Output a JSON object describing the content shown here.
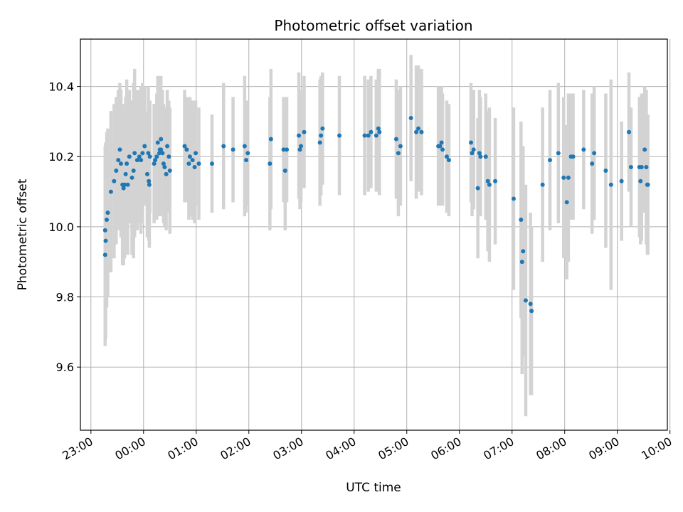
{
  "chart_data": {
    "type": "scatter",
    "title": "Photometric offset variation",
    "xlabel": "UTC time",
    "ylabel": "Photometric offset",
    "ylim": [
      9.42,
      10.535
    ],
    "xlim_hours": [
      -1.2,
      9.95
    ],
    "grid": true,
    "marker_color": "#1f77b4",
    "errorbar_color": "#d3d3d3",
    "x_ticks": [
      {
        "hour": -1,
        "label": "23:00"
      },
      {
        "hour": 0,
        "label": "00:00"
      },
      {
        "hour": 1,
        "label": "01:00"
      },
      {
        "hour": 2,
        "label": "02:00"
      },
      {
        "hour": 3,
        "label": "03:00"
      },
      {
        "hour": 4,
        "label": "04:00"
      },
      {
        "hour": 5,
        "label": "05:00"
      },
      {
        "hour": 6,
        "label": "06:00"
      },
      {
        "hour": 7,
        "label": "07:00"
      },
      {
        "hour": 8,
        "label": "08:00"
      },
      {
        "hour": 9,
        "label": "09:00"
      },
      {
        "hour": 10,
        "label": "10:00"
      }
    ],
    "y_ticks": [
      {
        "value": 9.6,
        "label": "9.6"
      },
      {
        "value": 9.8,
        "label": "9.8"
      },
      {
        "value": 10.0,
        "label": "10.0"
      },
      {
        "value": 10.2,
        "label": "10.2"
      },
      {
        "value": 10.4,
        "label": "10.4"
      }
    ],
    "series": [
      {
        "name": "offset",
        "points": [
          [
            -0.73,
            9.92,
            0.26
          ],
          [
            -0.73,
            9.99,
            0.24
          ],
          [
            -0.72,
            9.96,
            0.28
          ],
          [
            -0.7,
            10.02,
            0.25
          ],
          [
            -0.68,
            10.04,
            0.24
          ],
          [
            -0.62,
            10.1,
            0.23
          ],
          [
            -0.56,
            10.13,
            0.22
          ],
          [
            -0.52,
            10.16,
            0.21
          ],
          [
            -0.48,
            10.19,
            0.2
          ],
          [
            -0.45,
            10.22,
            0.19
          ],
          [
            -0.43,
            10.18,
            0.21
          ],
          [
            -0.4,
            10.12,
            0.23
          ],
          [
            -0.38,
            10.11,
            0.22
          ],
          [
            -0.36,
            10.12,
            0.21
          ],
          [
            -0.34,
            10.15,
            0.22
          ],
          [
            -0.32,
            10.18,
            0.24
          ],
          [
            -0.3,
            10.12,
            0.2
          ],
          [
            -0.27,
            10.2,
            0.19
          ],
          [
            -0.22,
            10.14,
            0.22
          ],
          [
            -0.19,
            10.16,
            0.25
          ],
          [
            -0.17,
            10.21,
            0.24
          ],
          [
            -0.12,
            10.19,
            0.2
          ],
          [
            -0.08,
            10.2,
            0.19
          ],
          [
            -0.05,
            10.19,
            0.21
          ],
          [
            -0.02,
            10.21,
            0.2
          ],
          [
            0.02,
            10.23,
            0.17
          ],
          [
            0.07,
            10.15,
            0.18
          ],
          [
            0.09,
            10.21,
            0.19
          ],
          [
            0.1,
            10.13,
            0.17
          ],
          [
            0.11,
            10.12,
            0.18
          ],
          [
            0.12,
            10.2,
            0.16
          ],
          [
            0.2,
            10.18,
            0.17
          ],
          [
            0.22,
            10.19,
            0.16
          ],
          [
            0.25,
            10.2,
            0.18
          ],
          [
            0.27,
            10.24,
            0.19
          ],
          [
            0.3,
            10.21,
            0.18
          ],
          [
            0.31,
            10.22,
            0.17
          ],
          [
            0.33,
            10.22,
            0.17
          ],
          [
            0.33,
            10.25,
            0.18
          ],
          [
            0.36,
            10.21,
            0.18
          ],
          [
            0.38,
            10.18,
            0.17
          ],
          [
            0.4,
            10.17,
            0.17
          ],
          [
            0.43,
            10.15,
            0.16
          ],
          [
            0.45,
            10.23,
            0.16
          ],
          [
            0.48,
            10.2,
            0.16
          ],
          [
            0.5,
            10.16,
            0.18
          ],
          [
            0.78,
            10.23,
            0.16
          ],
          [
            0.82,
            10.22,
            0.15
          ],
          [
            0.86,
            10.18,
            0.16
          ],
          [
            0.88,
            10.2,
            0.17
          ],
          [
            0.93,
            10.19,
            0.17
          ],
          [
            0.97,
            10.17,
            0.16
          ],
          [
            0.99,
            10.21,
            0.15
          ],
          [
            1.05,
            10.18,
            0.16
          ],
          [
            1.3,
            10.18,
            0.14
          ],
          [
            1.52,
            10.23,
            0.18
          ],
          [
            1.7,
            10.22,
            0.15
          ],
          [
            1.92,
            10.23,
            0.2
          ],
          [
            1.95,
            10.19,
            0.15
          ],
          [
            1.98,
            10.21,
            0.15
          ],
          [
            2.4,
            10.18,
            0.19
          ],
          [
            2.42,
            10.25,
            0.2
          ],
          [
            2.66,
            10.22,
            0.15
          ],
          [
            2.69,
            10.16,
            0.17
          ],
          [
            2.72,
            10.22,
            0.15
          ],
          [
            2.95,
            10.26,
            0.18
          ],
          [
            2.97,
            10.22,
            0.17
          ],
          [
            2.99,
            10.23,
            0.16
          ],
          [
            3.05,
            10.27,
            0.16
          ],
          [
            3.35,
            10.24,
            0.18
          ],
          [
            3.37,
            10.26,
            0.17
          ],
          [
            3.4,
            10.28,
            0.16
          ],
          [
            3.72,
            10.26,
            0.17
          ],
          [
            4.2,
            10.26,
            0.17
          ],
          [
            4.27,
            10.26,
            0.16
          ],
          [
            4.32,
            10.27,
            0.16
          ],
          [
            4.42,
            10.26,
            0.16
          ],
          [
            4.46,
            10.28,
            0.17
          ],
          [
            4.48,
            10.27,
            0.18
          ],
          [
            4.8,
            10.25,
            0.17
          ],
          [
            4.84,
            10.21,
            0.18
          ],
          [
            4.88,
            10.23,
            0.17
          ],
          [
            5.08,
            10.31,
            0.18
          ],
          [
            5.18,
            10.27,
            0.19
          ],
          [
            5.22,
            10.28,
            0.18
          ],
          [
            5.28,
            10.27,
            0.18
          ],
          [
            5.6,
            10.23,
            0.17
          ],
          [
            5.63,
            10.23,
            0.17
          ],
          [
            5.66,
            10.24,
            0.16
          ],
          [
            5.68,
            10.22,
            0.16
          ],
          [
            5.76,
            10.2,
            0.16
          ],
          [
            5.8,
            10.19,
            0.16
          ],
          [
            6.22,
            10.24,
            0.17
          ],
          [
            6.24,
            10.21,
            0.18
          ],
          [
            6.27,
            10.22,
            0.17
          ],
          [
            6.35,
            10.11,
            0.2
          ],
          [
            6.38,
            10.21,
            0.18
          ],
          [
            6.4,
            10.2,
            0.17
          ],
          [
            6.5,
            10.2,
            0.18
          ],
          [
            6.54,
            10.13,
            0.2
          ],
          [
            6.57,
            10.12,
            0.22
          ],
          [
            6.68,
            10.13,
            0.18
          ],
          [
            7.03,
            10.08,
            0.26
          ],
          [
            7.17,
            10.02,
            0.28
          ],
          [
            7.19,
            9.9,
            0.32
          ],
          [
            7.21,
            9.93,
            0.3
          ],
          [
            7.26,
            9.79,
            0.33
          ],
          [
            7.35,
            9.78,
            0.26
          ],
          [
            7.37,
            9.76,
            0.24
          ],
          [
            7.58,
            10.12,
            0.22
          ],
          [
            7.72,
            10.19,
            0.2
          ],
          [
            7.88,
            10.21,
            0.2
          ],
          [
            7.98,
            10.14,
            0.23
          ],
          [
            8.04,
            10.07,
            0.22
          ],
          [
            8.07,
            10.14,
            0.24
          ],
          [
            8.12,
            10.2,
            0.18
          ],
          [
            8.16,
            10.2,
            0.18
          ],
          [
            8.36,
            10.22,
            0.17
          ],
          [
            8.52,
            10.18,
            0.2
          ],
          [
            8.56,
            10.21,
            0.19
          ],
          [
            8.78,
            10.16,
            0.22
          ],
          [
            8.88,
            10.12,
            0.3
          ],
          [
            9.08,
            10.13,
            0.17
          ],
          [
            9.22,
            10.27,
            0.17
          ],
          [
            9.26,
            10.17,
            0.17
          ],
          [
            9.42,
            10.17,
            0.2
          ],
          [
            9.44,
            10.13,
            0.18
          ],
          [
            9.46,
            10.17,
            0.21
          ],
          [
            9.52,
            10.22,
            0.18
          ],
          [
            9.55,
            10.17,
            0.22
          ],
          [
            9.57,
            10.12,
            0.2
          ],
          [
            9.58,
            10.12,
            0.2
          ]
        ]
      }
    ]
  }
}
